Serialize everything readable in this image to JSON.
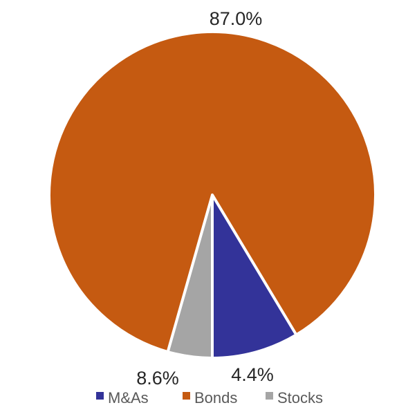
{
  "chart_data": {
    "type": "pie",
    "title": "",
    "categories": [
      "M&As",
      "Bonds",
      "Stocks"
    ],
    "values": [
      8.6,
      87.0,
      4.4
    ],
    "labels": [
      "8.6%",
      "87.0%",
      "4.4%"
    ],
    "colors": [
      "#333399",
      "#C55A11",
      "#A5A5A5"
    ],
    "legend": {
      "position": "bottom",
      "entries": [
        "M&As",
        "Bonds",
        "Stocks"
      ]
    }
  }
}
